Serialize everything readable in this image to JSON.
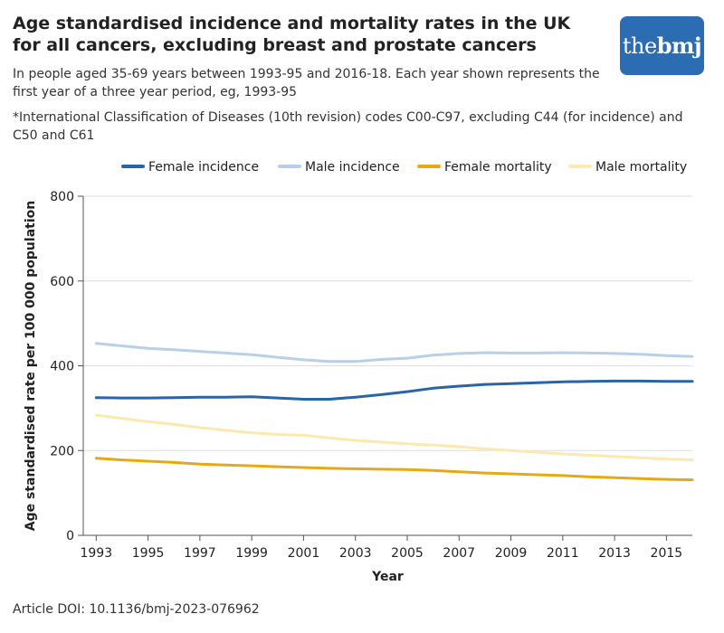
{
  "header": {
    "title": "Age standardised incidence and mortality rates in the UK for all cancers, excluding breast and prostate cancers",
    "subtitle": "In people aged 35-69 years between 1993-95 and 2016-18. Each year shown represents the first year of a three year period, eg, 1993-95",
    "footnote": "*International Classification of Diseases (10th revision) codes C00-C97, excluding C44 (for incidence) and C50 and C61",
    "logo_prefix": "the",
    "logo_bold": "bmj"
  },
  "footer": {
    "doi": "Article DOI: 10.1136/bmj-2023-076962"
  },
  "colors": {
    "female_incidence": "#2a64a8",
    "male_incidence": "#b7cfe8",
    "female_mortality": "#e6a913",
    "male_mortality": "#fbe9b0",
    "grid": "#dddddd",
    "axis": "#555555",
    "logo_bg": "#2b6cb3"
  },
  "chart_data": {
    "type": "line",
    "title": "Age standardised incidence and mortality rates in the UK for all cancers, excluding breast and prostate cancers",
    "xlabel": "Year",
    "ylabel": "Age standardised rate per 100 000 population",
    "x": [
      1993,
      1994,
      1995,
      1996,
      1997,
      1998,
      1999,
      2000,
      2001,
      2002,
      2003,
      2004,
      2005,
      2006,
      2007,
      2008,
      2009,
      2010,
      2011,
      2012,
      2013,
      2014,
      2015,
      2016
    ],
    "xlim": [
      1992.5,
      2016
    ],
    "ylim": [
      0,
      800
    ],
    "yticks": [
      0,
      200,
      400,
      600,
      800
    ],
    "xticks": [
      1993,
      1995,
      1997,
      1999,
      2001,
      2003,
      2005,
      2007,
      2009,
      2011,
      2013,
      2015
    ],
    "grid": "horizontal",
    "legend_position": "top",
    "series": [
      {
        "name": "Female incidence",
        "color_key": "female_incidence",
        "values": [
          325,
          324,
          324,
          325,
          326,
          326,
          327,
          324,
          321,
          321,
          326,
          332,
          339,
          347,
          352,
          356,
          358,
          360,
          362,
          363,
          364,
          364,
          363,
          363
        ]
      },
      {
        "name": "Male incidence",
        "color_key": "male_incidence",
        "values": [
          453,
          447,
          441,
          438,
          434,
          430,
          426,
          420,
          414,
          410,
          410,
          415,
          418,
          425,
          429,
          431,
          430,
          430,
          431,
          430,
          429,
          427,
          424,
          422
        ]
      },
      {
        "name": "Female mortality",
        "color_key": "female_mortality",
        "values": [
          182,
          178,
          175,
          172,
          168,
          166,
          164,
          162,
          160,
          158,
          157,
          156,
          155,
          153,
          150,
          147,
          145,
          143,
          141,
          138,
          136,
          134,
          132,
          131
        ]
      },
      {
        "name": "Male mortality",
        "color_key": "male_mortality",
        "values": [
          283,
          276,
          268,
          262,
          254,
          248,
          242,
          238,
          236,
          230,
          224,
          220,
          216,
          213,
          209,
          204,
          200,
          196,
          192,
          189,
          186,
          183,
          180,
          178
        ]
      }
    ]
  }
}
